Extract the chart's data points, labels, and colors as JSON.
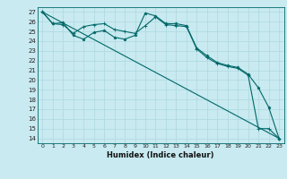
{
  "xlabel": "Humidex (Indice chaleur)",
  "bg_color": "#c8eaf0",
  "grid_color": "#afd8e0",
  "line_color": "#006868",
  "series1_x": [
    0,
    1,
    2,
    3,
    4,
    5,
    6,
    7,
    8,
    9,
    10,
    11,
    12,
    13,
    14,
    15,
    16,
    17,
    18,
    19,
    20,
    21,
    22,
    23
  ],
  "series1_y": [
    27.0,
    25.8,
    25.9,
    24.6,
    24.2,
    24.9,
    25.1,
    24.4,
    24.2,
    24.6,
    26.9,
    26.6,
    25.8,
    25.8,
    25.6,
    23.3,
    22.5,
    21.8,
    21.5,
    21.3,
    20.6,
    19.2,
    17.2,
    14.0
  ],
  "series2_x": [
    0,
    1,
    2,
    3,
    4,
    5,
    6,
    7,
    8,
    9,
    10,
    11,
    12,
    13,
    14,
    15,
    16,
    17,
    18,
    19,
    20,
    21,
    22,
    23
  ],
  "series2_y": [
    27.0,
    25.8,
    25.7,
    24.8,
    25.5,
    25.7,
    25.8,
    25.2,
    25.0,
    24.8,
    25.6,
    26.5,
    25.7,
    25.6,
    25.5,
    23.2,
    22.3,
    21.7,
    21.4,
    21.2,
    20.5,
    15.0,
    15.0,
    14.0
  ],
  "series3_x": [
    0,
    23
  ],
  "series3_y": [
    27.0,
    14.0
  ],
  "ylim": [
    13.5,
    27.5
  ],
  "xlim": [
    -0.5,
    23.5
  ],
  "yticks": [
    14,
    15,
    16,
    17,
    18,
    19,
    20,
    21,
    22,
    23,
    24,
    25,
    26,
    27
  ],
  "xticks": [
    0,
    1,
    2,
    3,
    4,
    5,
    6,
    7,
    8,
    9,
    10,
    11,
    12,
    13,
    14,
    15,
    16,
    17,
    18,
    19,
    20,
    21,
    22,
    23
  ],
  "ylabel_fontsize": 5.0,
  "xlabel_fontsize": 6.0,
  "tick_fontsize": 4.5
}
